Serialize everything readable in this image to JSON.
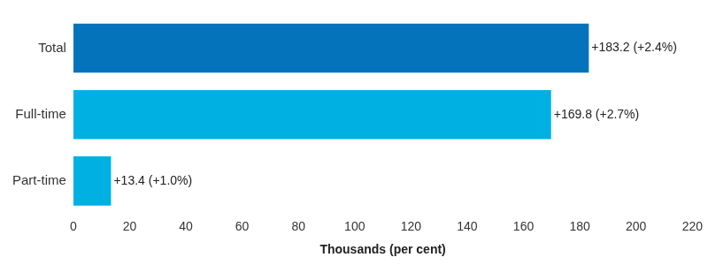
{
  "chart_data": {
    "type": "bar",
    "orientation": "horizontal",
    "categories": [
      "Total",
      "Full-time",
      "Part-time"
    ],
    "values": [
      183.2,
      169.8,
      13.4
    ],
    "value_labels": [
      "+183.2 (+2.4%)",
      "+169.8 (+2.7%)",
      "+13.4 (+1.0%)"
    ],
    "colors": [
      "#0573bb",
      "#00b0e3",
      "#00b0e3"
    ],
    "xlabel": "Thousands (per cent)",
    "xlim": [
      0,
      220
    ],
    "xticks": [
      0,
      20,
      40,
      60,
      80,
      100,
      120,
      140,
      160,
      180,
      200,
      220
    ],
    "grid": false,
    "data_labels": true
  }
}
